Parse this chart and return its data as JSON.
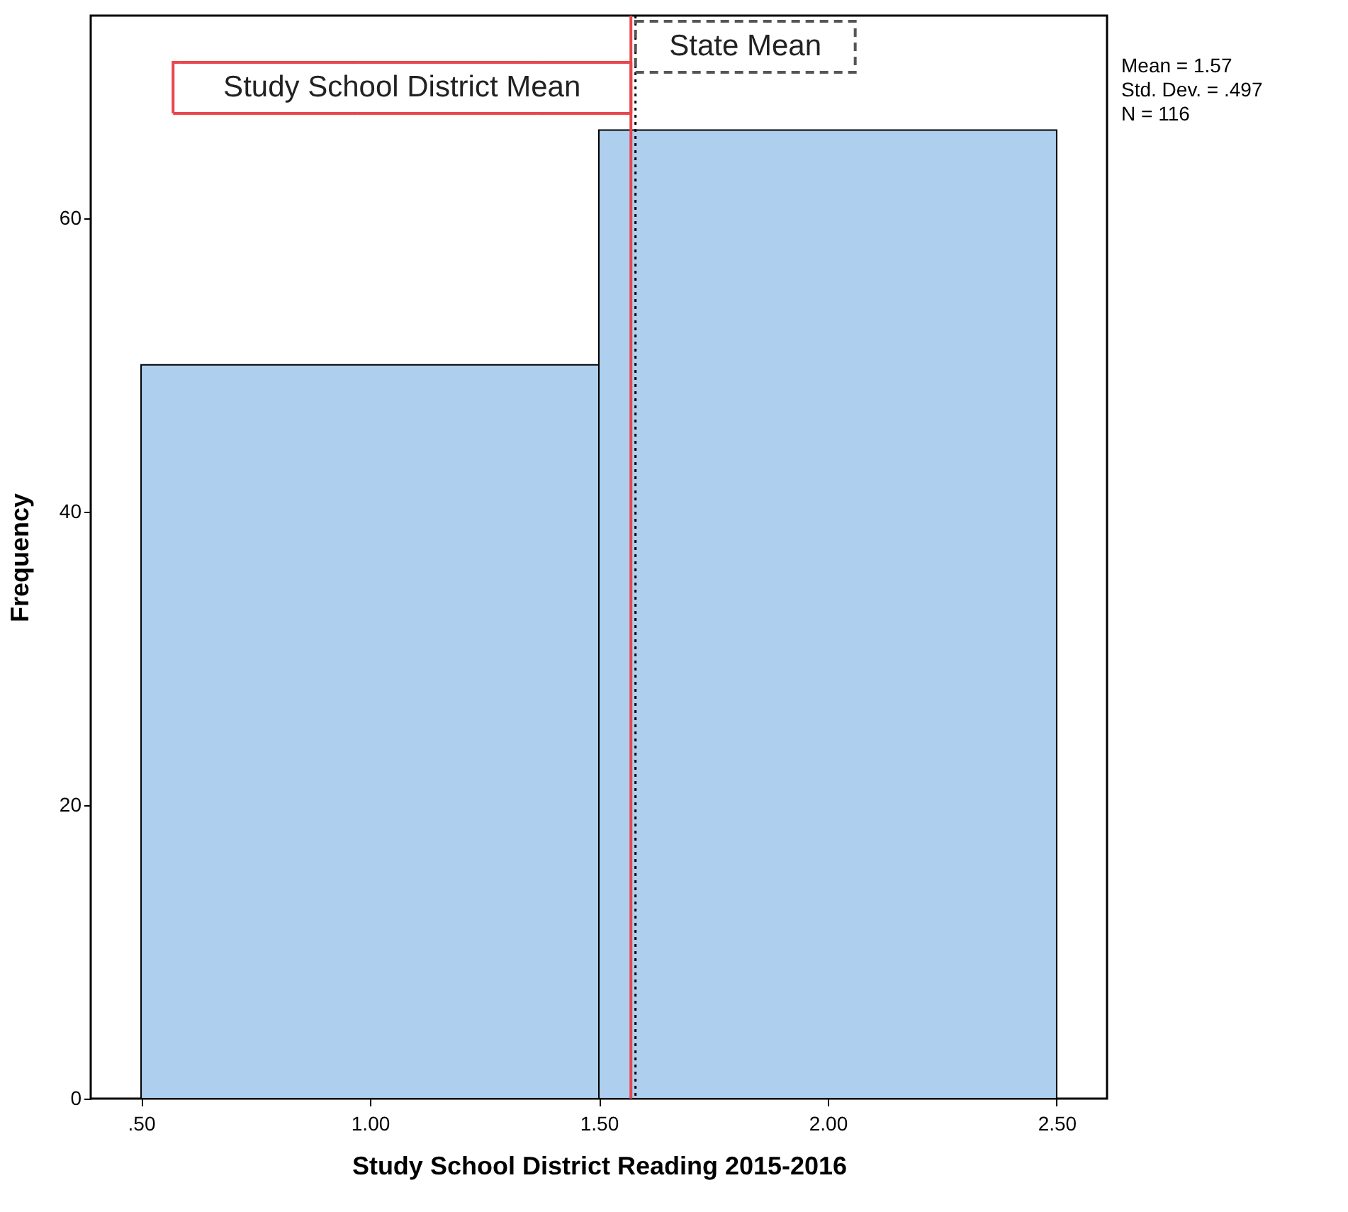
{
  "chart_data": {
    "type": "histogram",
    "xlabel": "Study School District Reading 2015-2016",
    "ylabel": "Frequency",
    "bins": [
      0.5,
      1.5,
      2.5
    ],
    "values": [
      50,
      66
    ],
    "color": "#aecfee",
    "xlim": [
      0.39,
      2.61
    ],
    "ylim": [
      0,
      73.8
    ],
    "xticks": [
      {
        "value": 0.5,
        "label": ".50"
      },
      {
        "value": 1.0,
        "label": "1.00"
      },
      {
        "value": 1.5,
        "label": "1.50"
      },
      {
        "value": 2.0,
        "label": "2.00"
      },
      {
        "value": 2.5,
        "label": "2.50"
      }
    ],
    "yticks": [
      0,
      20,
      40,
      60
    ],
    "grid": false,
    "ref_lines": [
      {
        "axis": "x",
        "value": 1.57,
        "label": "Study School District Mean",
        "color": "#e8474f",
        "line_style": "solid"
      },
      {
        "axis": "x",
        "value": 1.58,
        "label": "State Mean",
        "color": "#000000",
        "line_style": "dotted"
      }
    ],
    "annotations": [
      "Mean = 1.57",
      "Std. Dev. = .497",
      "N = 116"
    ]
  }
}
